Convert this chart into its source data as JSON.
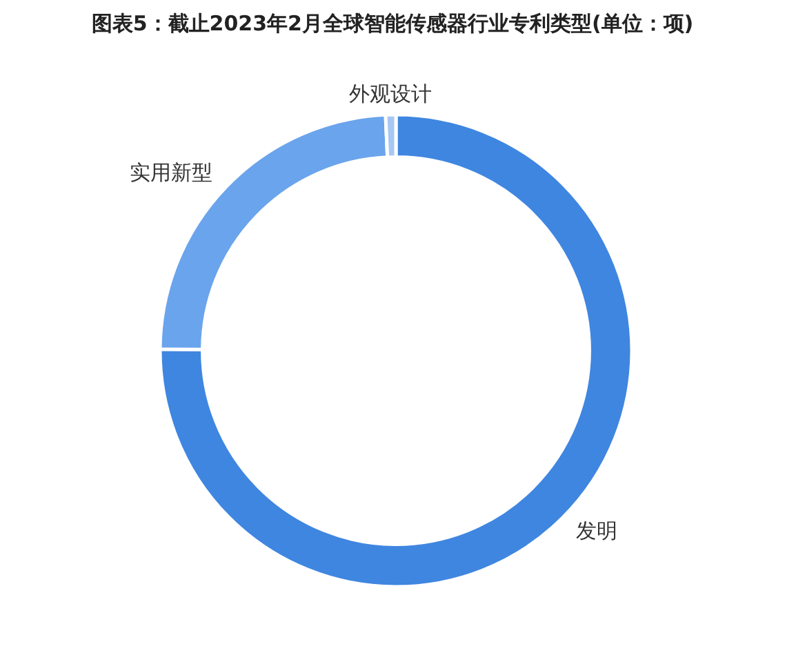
{
  "chart_data": {
    "type": "donut",
    "title": "图表5：截止2023年2月全球智能传感器行业专利类型(单位：项)",
    "categories": [
      "发明",
      "实用新型",
      "外观设计"
    ],
    "values": [
      75.1,
      24.2,
      0.7
    ],
    "colors": [
      "#3f86e0",
      "#6aa4ec",
      "#a7c8f2"
    ]
  }
}
